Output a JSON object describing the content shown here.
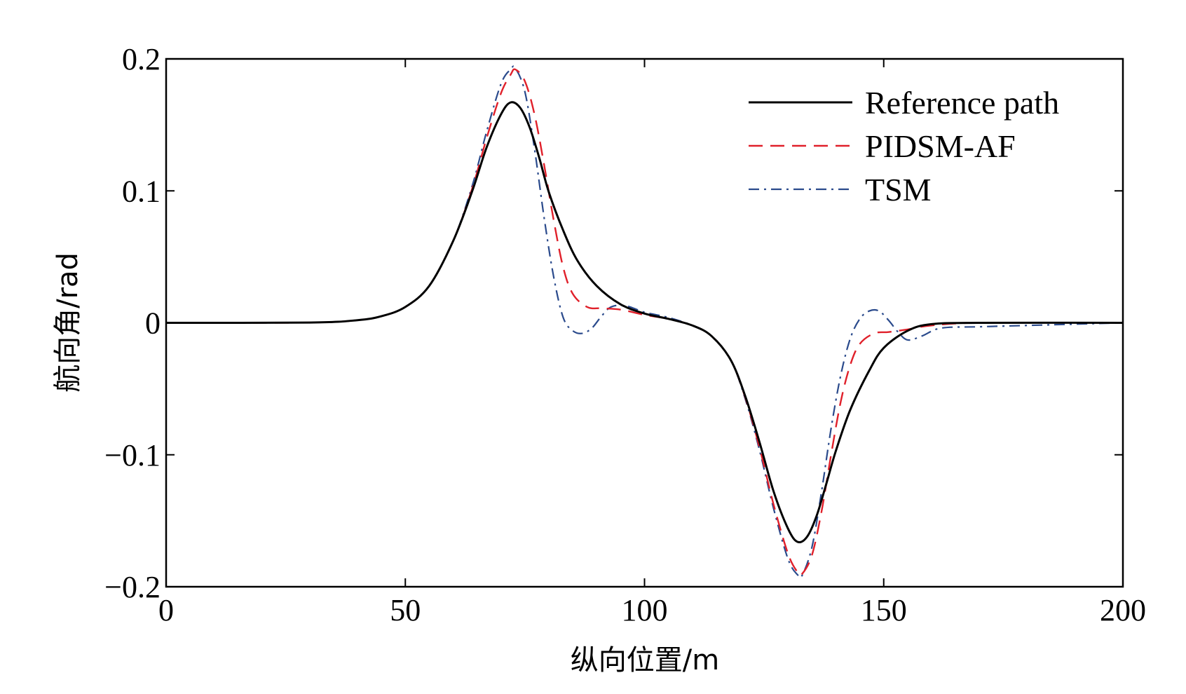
{
  "chart_data": {
    "type": "line",
    "xlabel": "纵向位置/m",
    "ylabel": "航向角/rad",
    "xlim": [
      0,
      200
    ],
    "ylim": [
      -0.2,
      0.2
    ],
    "xticks": [
      0,
      50,
      100,
      150,
      200
    ],
    "xtick_labels": [
      "0",
      "50",
      "100",
      "150",
      "200"
    ],
    "yticks": [
      -0.2,
      -0.1,
      0,
      0.1,
      0.2
    ],
    "ytick_labels": [
      "−0.2",
      "−0.1",
      "0",
      "0.1",
      "0.2"
    ],
    "grid": false,
    "legend_position": "top-right",
    "series": [
      {
        "name": "Reference path",
        "color": "#000000",
        "dash": "solid",
        "x": [
          0,
          30,
          40,
          45,
          50,
          55,
          60,
          64,
          67,
          70,
          72,
          74,
          76,
          78,
          80,
          83,
          86,
          90,
          95,
          100,
          105,
          110,
          114,
          118,
          121,
          124,
          127,
          130,
          132,
          134,
          136,
          138,
          140,
          143,
          147,
          150,
          155,
          160,
          170,
          200
        ],
        "y": [
          0,
          0.0002,
          0.002,
          0.005,
          0.012,
          0.028,
          0.062,
          0.1,
          0.133,
          0.158,
          0.167,
          0.163,
          0.148,
          0.125,
          0.099,
          0.07,
          0.047,
          0.028,
          0.014,
          0.007,
          0.003,
          -0.002,
          -0.01,
          -0.028,
          -0.055,
          -0.09,
          -0.128,
          -0.156,
          -0.166,
          -0.162,
          -0.146,
          -0.122,
          -0.097,
          -0.066,
          -0.036,
          -0.019,
          -0.006,
          -0.001,
          0,
          0
        ]
      },
      {
        "name": "PIDSM-AF",
        "color": "#e0202a",
        "dash": "dashed",
        "x": [
          0,
          30,
          40,
          45,
          50,
          55,
          60,
          64,
          67,
          70,
          72,
          73,
          75,
          77,
          79,
          81,
          83,
          85,
          88,
          91,
          95,
          100,
          105,
          110,
          114,
          118,
          121,
          124,
          127,
          130,
          132,
          133,
          135,
          137,
          139,
          141,
          143,
          145,
          148,
          151,
          155,
          160,
          170,
          200
        ],
        "y": [
          0,
          0.0002,
          0.002,
          0.005,
          0.012,
          0.028,
          0.062,
          0.102,
          0.14,
          0.174,
          0.188,
          0.192,
          0.183,
          0.158,
          0.12,
          0.078,
          0.042,
          0.022,
          0.012,
          0.011,
          0.01,
          0.006,
          0.003,
          -0.002,
          -0.01,
          -0.028,
          -0.056,
          -0.094,
          -0.138,
          -0.175,
          -0.189,
          -0.19,
          -0.176,
          -0.143,
          -0.1,
          -0.06,
          -0.032,
          -0.016,
          -0.008,
          -0.007,
          -0.005,
          -0.002,
          0,
          0
        ]
      },
      {
        "name": "TSM",
        "color": "#2a4a8c",
        "dash": "dashdot",
        "x": [
          0,
          30,
          40,
          45,
          50,
          55,
          60,
          64,
          67,
          70,
          72,
          73,
          75,
          77,
          79,
          81,
          83,
          85,
          87,
          89,
          91,
          93,
          96,
          100,
          105,
          110,
          114,
          118,
          121,
          124,
          127,
          130,
          132,
          133,
          135,
          137,
          139,
          141,
          143,
          145,
          147,
          149,
          151,
          153,
          155,
          158,
          162,
          170,
          180,
          200
        ],
        "y": [
          0,
          0.0002,
          0.002,
          0.005,
          0.012,
          0.028,
          0.062,
          0.104,
          0.145,
          0.181,
          0.192,
          0.193,
          0.175,
          0.132,
          0.08,
          0.035,
          0.004,
          -0.006,
          -0.008,
          -0.004,
          0.005,
          0.012,
          0.013,
          0.008,
          0.004,
          -0.002,
          -0.01,
          -0.028,
          -0.057,
          -0.096,
          -0.141,
          -0.179,
          -0.191,
          -0.191,
          -0.17,
          -0.128,
          -0.08,
          -0.04,
          -0.012,
          0.003,
          0.009,
          0.009,
          0.002,
          -0.007,
          -0.013,
          -0.01,
          -0.004,
          -0.003,
          -0.002,
          0
        ]
      }
    ]
  }
}
